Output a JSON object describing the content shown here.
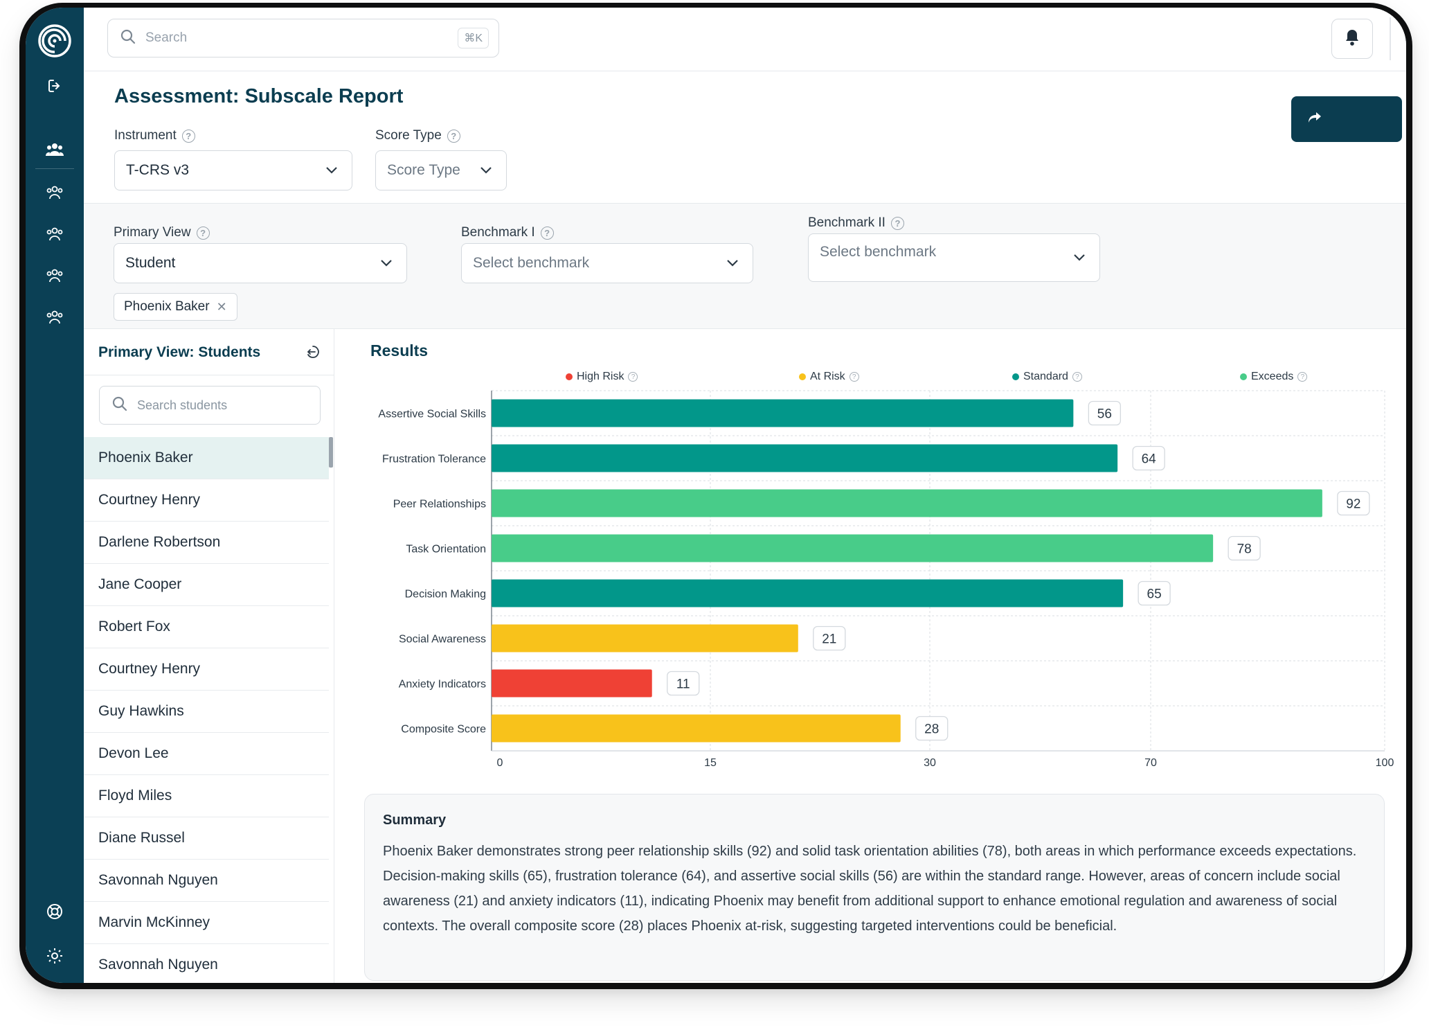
{
  "search": {
    "placeholder": "Search",
    "shortcut": "⌘K"
  },
  "page": {
    "title": "Assessment: Subscale Report"
  },
  "filters": {
    "instrument": {
      "label": "Instrument",
      "value": "T-CRS v3"
    },
    "score_type": {
      "label": "Score Type",
      "placeholder": "Score Type"
    },
    "primary_view": {
      "label": "Primary View",
      "value": "Student"
    },
    "benchmark1": {
      "label": "Benchmark I",
      "placeholder": "Select benchmark"
    },
    "benchmark2": {
      "label": "Benchmark II",
      "placeholder": "Select benchmark"
    },
    "selected_chip": "Phoenix Baker"
  },
  "students_panel": {
    "title": "Primary View: Students",
    "search_placeholder": "Search students",
    "students": [
      "Phoenix Baker",
      "Courtney Henry",
      "Darlene Robertson",
      "Jane Cooper",
      "Robert Fox",
      "Courtney Henry",
      "Guy Hawkins",
      "Devon Lee",
      "Floyd Miles",
      "Diane Russel",
      "Savonnah Nguyen",
      "Marvin McKinney",
      "Savonnah Nguyen"
    ],
    "active_index": 0
  },
  "results": {
    "title": "Results"
  },
  "legend": [
    {
      "label": "High Risk",
      "color": "#ef4135"
    },
    {
      "label": "At Risk",
      "color": "#f8c21b"
    },
    {
      "label": "Standard",
      "color": "#02978a"
    },
    {
      "label": "Exceeds",
      "color": "#48cc89"
    }
  ],
  "chart_data": {
    "type": "bar",
    "orientation": "horizontal",
    "categories": [
      "Assertive Social Skills",
      "Frustration Tolerance",
      "Peer Relationships",
      "Task Orientation",
      "Decision Making",
      "Social Awareness",
      "Anxiety Indicators",
      "Composite Score"
    ],
    "values": [
      56,
      64,
      92,
      78,
      65,
      21,
      11,
      28
    ],
    "categories_band": [
      "Standard",
      "Standard",
      "Exceeds",
      "Exceeds",
      "Standard",
      "At Risk",
      "High Risk",
      "At Risk"
    ],
    "x_ticks": [
      0,
      15,
      30,
      70,
      100
    ],
    "xlim": [
      0,
      100
    ],
    "grid": true,
    "legend_position": "top"
  },
  "summary": {
    "title": "Summary",
    "text": "Phoenix Baker demonstrates strong peer relationship skills (92) and solid task orientation abilities (78), both areas in which performance exceeds expectations. Decision-making skills (65), frustration tolerance (64), and assertive social skills (56) are within the standard range. However, areas of concern include social awareness (21) and anxiety indicators (11), indicating Phoenix may benefit from additional support to enhance emotional regulation and awareness of social contexts. The overall composite score (28) places Phoenix at-risk, suggesting targeted interventions could be beneficial."
  }
}
